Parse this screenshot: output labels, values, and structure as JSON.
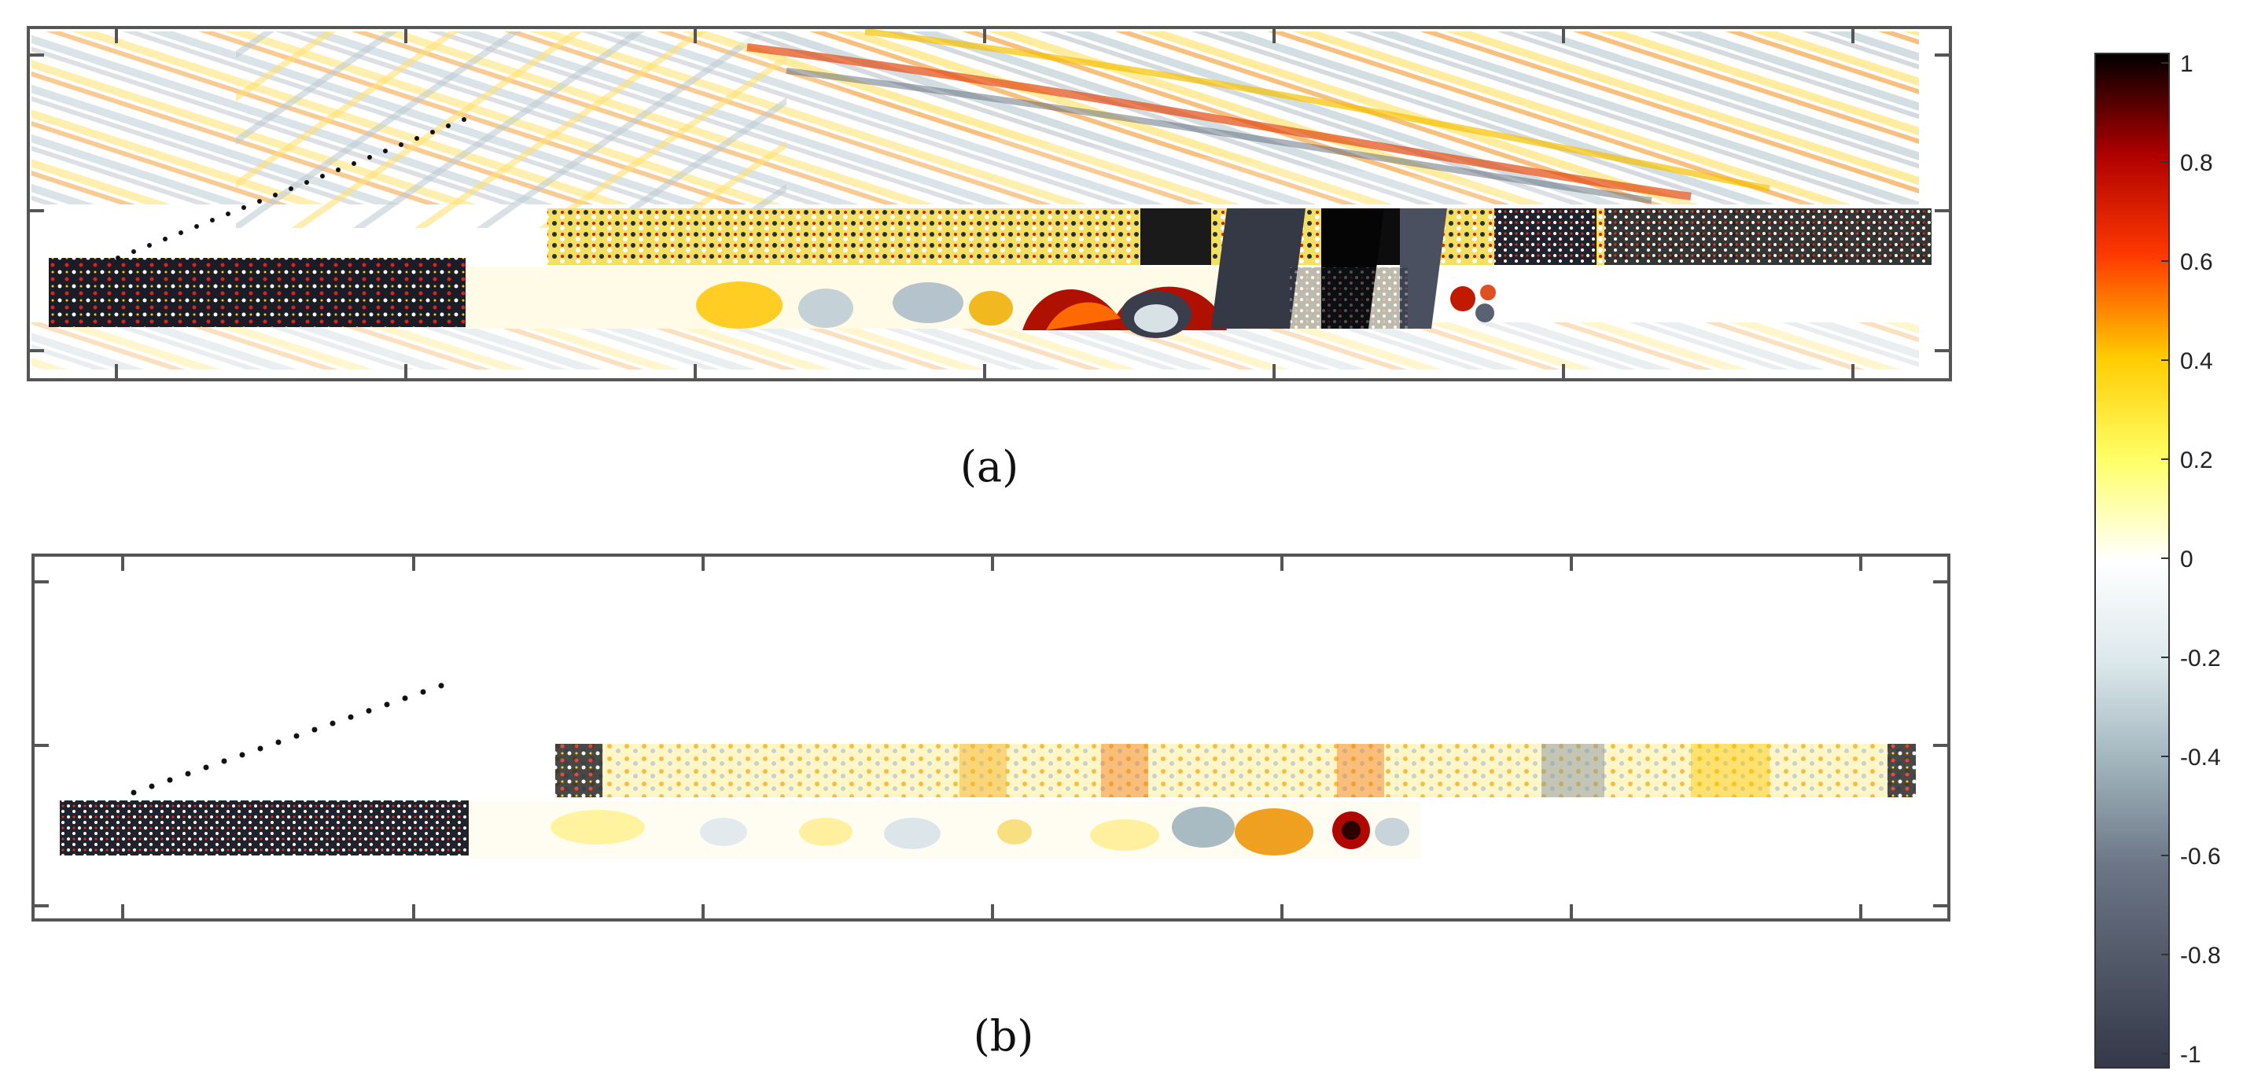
{
  "panels": [
    {
      "id": "a",
      "caption": "(a)"
    },
    {
      "id": "b",
      "caption": "(b)"
    }
  ],
  "colorbar": {
    "ticks": [
      "1",
      "0.8",
      "0.6",
      "0.4",
      "0.2",
      "0",
      "-0.2",
      "-0.4",
      "-0.6",
      "-0.8",
      "-1"
    ],
    "colors": {
      "max": "#000000",
      "high": "#b00000",
      "upper_mid": "#ff3a00",
      "mid_pos": "#ffcc00",
      "low_pos": "#ffff66",
      "zero": "#ffffff",
      "low_neg": "#dce8ec",
      "mid_neg": "#a0b4bc",
      "high_neg": "#6c7686",
      "min": "#343848"
    }
  }
}
